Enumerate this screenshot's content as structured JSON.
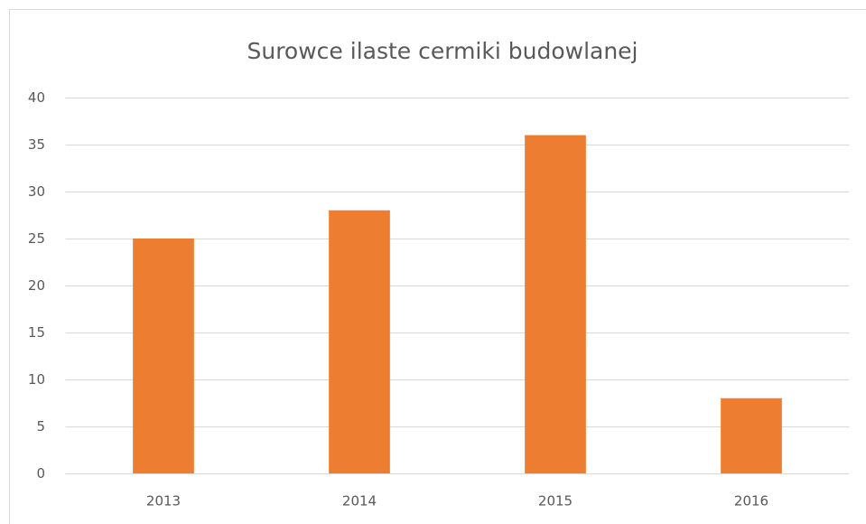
{
  "chart_data": {
    "type": "bar",
    "title": "Surowce ilaste cermiki budowlanej",
    "categories": [
      "2013",
      "2014",
      "2015",
      "2016"
    ],
    "values": [
      25,
      28,
      36,
      8
    ],
    "color": "#ed7d31",
    "ylim": [
      0,
      40
    ],
    "yticks": [
      0,
      5,
      10,
      15,
      20,
      25,
      30,
      35,
      40
    ],
    "grid": true
  }
}
